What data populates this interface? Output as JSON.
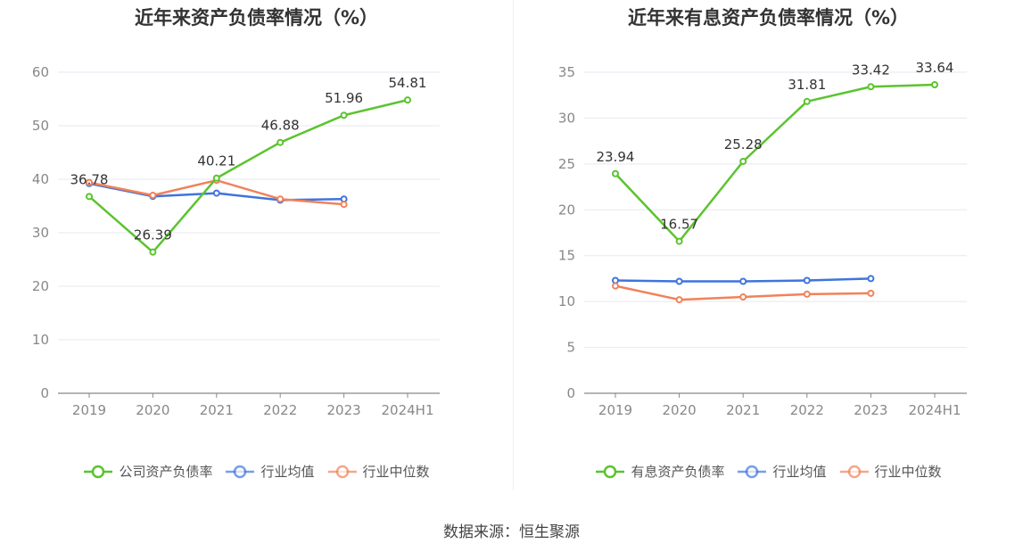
{
  "source_label": "数据来源：恒生聚源",
  "chart_data": [
    {
      "type": "line",
      "title": "近年来资产负债率情况（%）",
      "categories": [
        "2019",
        "2020",
        "2021",
        "2022",
        "2023",
        "2024H1"
      ],
      "ylim": [
        0,
        60
      ],
      "yticks": [
        0,
        10,
        20,
        30,
        40,
        50,
        60
      ],
      "grid": true,
      "legend_position": "bottom",
      "series": [
        {
          "name": "公司资产负债率",
          "color": "#5ac42e",
          "values": [
            36.78,
            26.39,
            40.21,
            46.88,
            51.96,
            54.81
          ],
          "labels": [
            "36.78",
            "26.39",
            "40.21",
            "46.88",
            "51.96",
            "54.81"
          ]
        },
        {
          "name": "行业均值",
          "color": "#3f74dd",
          "values": [
            39.2,
            36.8,
            37.4,
            36.1,
            36.3,
            null
          ]
        },
        {
          "name": "行业中位数",
          "color": "#f0825a",
          "values": [
            39.4,
            37.0,
            39.8,
            36.3,
            35.3,
            null
          ]
        }
      ]
    },
    {
      "type": "line",
      "title": "近年来有息资产负债率情况（%）",
      "categories": [
        "2019",
        "2020",
        "2021",
        "2022",
        "2023",
        "2024H1"
      ],
      "ylim": [
        0,
        35
      ],
      "yticks": [
        0,
        5,
        10,
        15,
        20,
        25,
        30,
        35
      ],
      "grid": true,
      "legend_position": "bottom",
      "series": [
        {
          "name": "有息资产负债率",
          "color": "#5ac42e",
          "values": [
            23.94,
            16.57,
            25.28,
            31.81,
            33.42,
            33.64
          ],
          "labels": [
            "23.94",
            "16.57",
            "25.28",
            "31.81",
            "33.42",
            "33.64"
          ]
        },
        {
          "name": "行业均值",
          "color": "#3f74dd",
          "values": [
            12.3,
            12.2,
            12.2,
            12.3,
            12.5,
            null
          ]
        },
        {
          "name": "行业中位数",
          "color": "#f0825a",
          "values": [
            11.7,
            10.2,
            10.5,
            10.8,
            10.9,
            null
          ]
        }
      ]
    }
  ]
}
